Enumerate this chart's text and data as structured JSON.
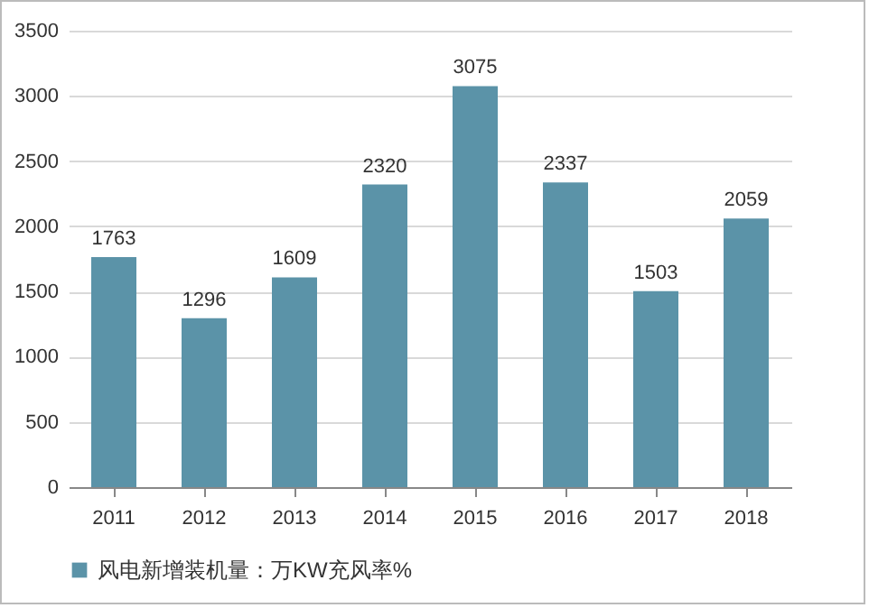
{
  "chart_data": {
    "type": "bar",
    "categories": [
      "2011",
      "2012",
      "2013",
      "2014",
      "2015",
      "2016",
      "2017",
      "2018"
    ],
    "series": [
      {
        "name": "风电新增装机量：万KW充风率%",
        "color": "#5b93a8",
        "values": [
          1763,
          1296,
          1609,
          2320,
          3075,
          2337,
          1503,
          2059
        ]
      }
    ],
    "ylim": [
      0,
      3500
    ],
    "yticks": [
      0,
      500,
      1000,
      1500,
      2000,
      2500,
      3000,
      3500
    ],
    "grid": "y",
    "legend": "bottom",
    "data_labels": true
  }
}
